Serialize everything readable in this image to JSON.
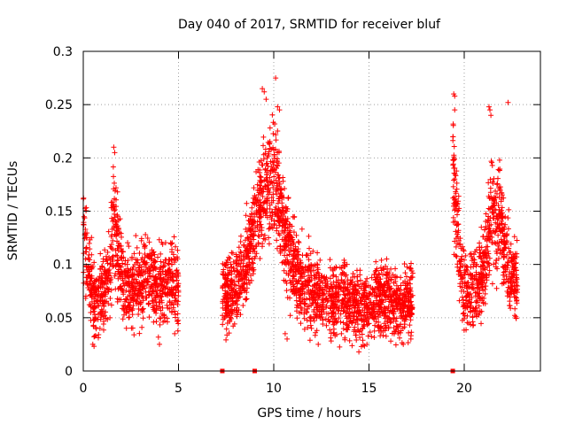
{
  "chart_data": {
    "type": "scatter",
    "title": "Day 040 of 2017, SRMTID for receiver bluf",
    "xlabel": "GPS time / hours",
    "ylabel": "SRMTID / TECUs",
    "xlim": [
      0,
      24
    ],
    "ylim": [
      0,
      0.3
    ],
    "x_ticks": [
      0,
      5,
      10,
      15,
      20
    ],
    "x_tick_labels": [
      "0",
      "5",
      "10",
      "15",
      "20"
    ],
    "y_ticks": [
      0,
      0.05,
      0.1,
      0.15,
      0.2,
      0.25,
      0.3
    ],
    "y_tick_labels": [
      "0",
      "0.05",
      "0.1",
      "0.15",
      "0.2",
      "0.25",
      "0.3"
    ],
    "grid": true,
    "marker": "plus",
    "color": "#ff0000",
    "series": [
      {
        "name": "SRMTID",
        "segments": [
          {
            "t_start": 0.0,
            "t_end": 5.0,
            "profile": [
              [
                0.0,
                0.125
              ],
              [
                0.3,
                0.095
              ],
              [
                0.6,
                0.06
              ],
              [
                1.0,
                0.075
              ],
              [
                1.4,
                0.09
              ],
              [
                1.6,
                0.15
              ],
              [
                1.9,
                0.1
              ],
              [
                2.3,
                0.075
              ],
              [
                2.8,
                0.08
              ],
              [
                3.3,
                0.09
              ],
              [
                3.8,
                0.075
              ],
              [
                4.3,
                0.085
              ],
              [
                4.7,
                0.09
              ],
              [
                5.0,
                0.075
              ]
            ],
            "spread": 0.022,
            "density": 190
          },
          {
            "t_start": 7.3,
            "t_end": 17.3,
            "profile": [
              [
                7.3,
                0.07
              ],
              [
                7.7,
                0.07
              ],
              [
                8.3,
                0.09
              ],
              [
                8.7,
                0.11
              ],
              [
                9.1,
                0.15
              ],
              [
                9.5,
                0.17
              ],
              [
                9.8,
                0.18
              ],
              [
                10.1,
                0.18
              ],
              [
                10.5,
                0.14
              ],
              [
                10.9,
                0.11
              ],
              [
                11.4,
                0.085
              ],
              [
                12.0,
                0.075
              ],
              [
                12.5,
                0.068
              ],
              [
                13.0,
                0.065
              ],
              [
                13.5,
                0.07
              ],
              [
                14.0,
                0.065
              ],
              [
                14.5,
                0.06
              ],
              [
                15.0,
                0.058
              ],
              [
                15.5,
                0.065
              ],
              [
                16.0,
                0.068
              ],
              [
                16.5,
                0.06
              ],
              [
                17.0,
                0.065
              ],
              [
                17.3,
                0.068
              ]
            ],
            "spread": 0.022,
            "density": 200
          },
          {
            "t_start": 19.4,
            "t_end": 22.8,
            "profile": [
              [
                19.4,
                0.2
              ],
              [
                19.6,
                0.15
              ],
              [
                19.9,
                0.08
              ],
              [
                20.3,
                0.07
              ],
              [
                20.7,
                0.08
              ],
              [
                21.1,
                0.1
              ],
              [
                21.5,
                0.16
              ],
              [
                21.7,
                0.13
              ],
              [
                21.9,
                0.15
              ],
              [
                22.2,
                0.11
              ],
              [
                22.5,
                0.09
              ],
              [
                22.8,
                0.08
              ]
            ],
            "spread": 0.022,
            "density": 200
          }
        ],
        "outliers": [
          [
            1.6,
            0.21
          ],
          [
            1.65,
            0.205
          ],
          [
            9.4,
            0.265
          ],
          [
            9.5,
            0.262
          ],
          [
            9.6,
            0.255
          ],
          [
            10.1,
            0.275
          ],
          [
            10.2,
            0.248
          ],
          [
            10.3,
            0.245
          ],
          [
            19.45,
            0.26
          ],
          [
            19.5,
            0.258
          ],
          [
            19.5,
            0.245
          ],
          [
            21.3,
            0.248
          ],
          [
            21.35,
            0.245
          ],
          [
            21.4,
            0.24
          ],
          [
            22.3,
            0.252
          ],
          [
            0.5,
            0.025
          ],
          [
            4.0,
            0.025
          ],
          [
            4.8,
            0.035
          ],
          [
            10.6,
            0.035
          ],
          [
            10.7,
            0.03
          ],
          [
            16.8,
            0.025
          ],
          [
            17.2,
            0.03
          ]
        ],
        "zero_markers": [
          [
            7.3,
            0.0
          ],
          [
            9.0,
            0.0
          ],
          [
            19.4,
            0.0
          ]
        ]
      }
    ]
  }
}
